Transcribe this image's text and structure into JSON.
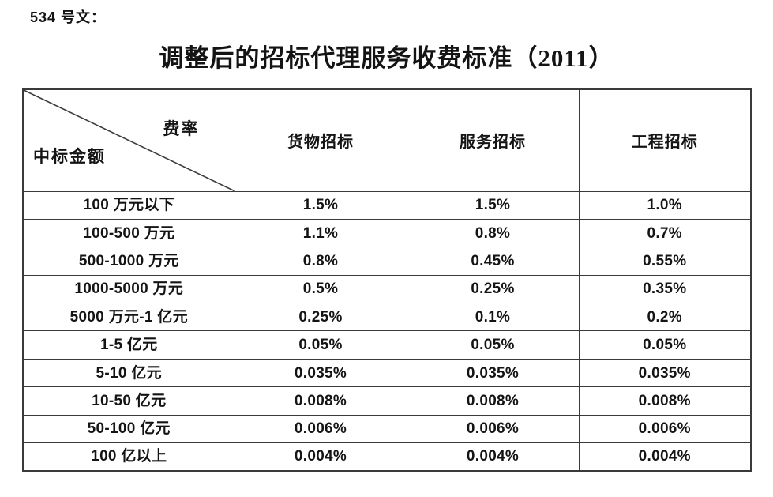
{
  "doc_label": "534 号文：",
  "title": "调整后的招标代理服务收费标准（2011）",
  "table": {
    "corner": {
      "top_right": "费率",
      "bottom_left": "中标金额"
    },
    "columns": [
      "货物招标",
      "服务招标",
      "工程招标"
    ],
    "rows": [
      {
        "label": "100 万元以下",
        "values": [
          "1.5%",
          "1.5%",
          "1.0%"
        ]
      },
      {
        "label": "100-500 万元",
        "values": [
          "1.1%",
          "0.8%",
          "0.7%"
        ]
      },
      {
        "label": "500-1000 万元",
        "values": [
          "0.8%",
          "0.45%",
          "0.55%"
        ]
      },
      {
        "label": "1000-5000 万元",
        "values": [
          "0.5%",
          "0.25%",
          "0.35%"
        ]
      },
      {
        "label": "5000 万元-1 亿元",
        "values": [
          "0.25%",
          "0.1%",
          "0.2%"
        ]
      },
      {
        "label": "1-5 亿元",
        "values": [
          "0.05%",
          "0.05%",
          "0.05%"
        ]
      },
      {
        "label": "5-10 亿元",
        "values": [
          "0.035%",
          "0.035%",
          "0.035%"
        ]
      },
      {
        "label": "10-50 亿元",
        "values": [
          "0.008%",
          "0.008%",
          "0.008%"
        ]
      },
      {
        "label": "50-100 亿元",
        "values": [
          "0.006%",
          "0.006%",
          "0.006%"
        ]
      },
      {
        "label": "100 亿以上",
        "values": [
          "0.004%",
          "0.004%",
          "0.004%"
        ]
      }
    ]
  },
  "colors": {
    "background": "#ffffff",
    "border": "#3a3a3a",
    "text": "#141414"
  }
}
